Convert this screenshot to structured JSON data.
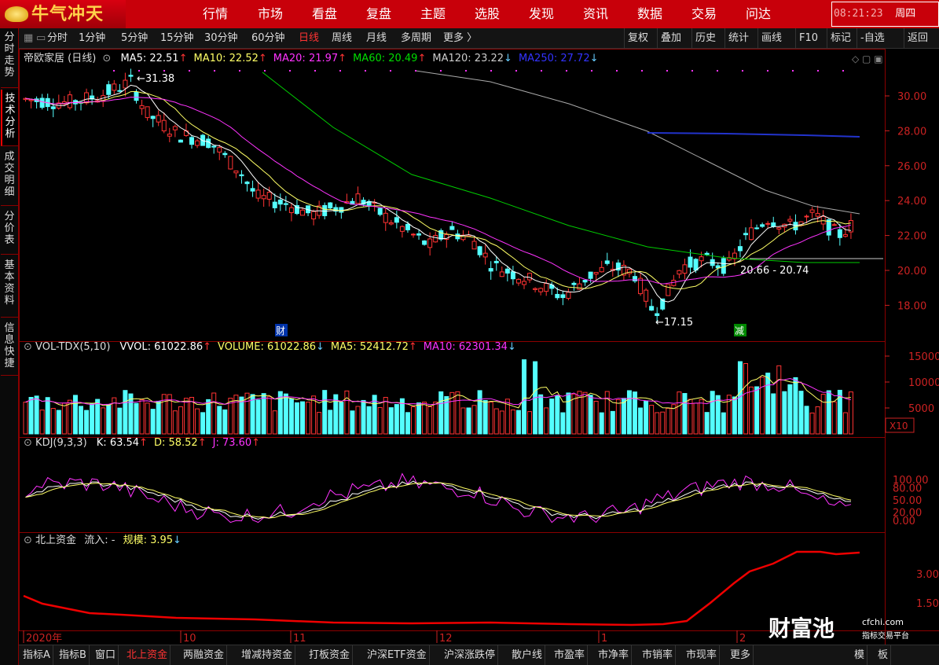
{
  "app": {
    "logo_text": "牛气冲天"
  },
  "topnav": {
    "items": [
      "行情",
      "市场",
      "看盘",
      "复盘",
      "主题",
      "选股",
      "发现",
      "资讯",
      "数据",
      "交易",
      "问达"
    ],
    "clock": "08:21:23",
    "weekday": "周四"
  },
  "toolbar": {
    "left": [
      "分时",
      "1分钟",
      "5分钟",
      "15分钟",
      "30分钟",
      "60分钟",
      "日线",
      "周线",
      "月线",
      "多周期",
      "更多 〉"
    ],
    "active": "日线",
    "right": [
      "复权",
      "叠加",
      "历史",
      "统计",
      "画线",
      "F10",
      "标记",
      "-自选",
      "返回"
    ]
  },
  "sidetabs": [
    "分时走势",
    "技术分析",
    "成交明细",
    "分价表",
    "基本资料",
    "信息快捷"
  ],
  "sidetab_active": "技术分析",
  "price_panel": {
    "name": "帝欧家居 (日线)",
    "indicators": [
      {
        "label": "MA5: 22.51",
        "arrow": "↑",
        "color": "#ffffff"
      },
      {
        "label": "MA10: 22.52",
        "arrow": "↑",
        "color": "#ffff66"
      },
      {
        "label": "MA20: 21.97",
        "arrow": "↑",
        "color": "#ff33ff"
      },
      {
        "label": "MA60: 20.49",
        "arrow": "↑",
        "color": "#00dd00"
      },
      {
        "label": "MA120: 23.22",
        "arrow": "↓",
        "color": "#cccccc"
      },
      {
        "label": "MA250: 27.72",
        "arrow": "↓",
        "color": "#3333ff"
      }
    ],
    "yticks": [
      "30.00",
      "28.00",
      "26.00",
      "24.00",
      "22.00",
      "20.00",
      "18.00"
    ],
    "annotations": {
      "high": "31.38",
      "low": "17.15",
      "range": "20.66 - 20.74",
      "marker_cai": "财",
      "marker_jian": "减"
    }
  },
  "vol_panel": {
    "title": "VOL-TDX(5,10)",
    "items": [
      {
        "label": "VVOL: 61022.86",
        "arrow": "↑",
        "color": "#ffffff"
      },
      {
        "label": "VOLUME: 61022.86",
        "arrow": "↓",
        "color": "#ffff66"
      },
      {
        "label": "MA5: 52412.72",
        "arrow": "↑",
        "color": "#ffff66"
      },
      {
        "label": "MA10: 62301.34",
        "arrow": "↓",
        "color": "#ff33ff"
      }
    ],
    "yticks": [
      "15000",
      "10000",
      "5000"
    ],
    "unit": "X10"
  },
  "kdj_panel": {
    "title": "KDJ(9,3,3)",
    "items": [
      {
        "label": "K: 63.54",
        "arrow": "↑",
        "color": "#ffffff"
      },
      {
        "label": "D: 58.52",
        "arrow": "↑",
        "color": "#ffff66"
      },
      {
        "label": "J: 73.60",
        "arrow": "↑",
        "color": "#ff33ff"
      }
    ],
    "yticks": [
      "100.00",
      "80.00",
      "50.00",
      "20.00",
      "0.00"
    ]
  },
  "north_panel": {
    "title": "北上资金",
    "flow": "流入: -",
    "scale": "规模: 3.95",
    "arrow": "↓",
    "yticks": [
      "3.00",
      "1.50"
    ]
  },
  "xaxis": [
    "2020年",
    "10",
    "11",
    "12",
    "1",
    "2"
  ],
  "bottombar": [
    "指标A",
    "指标B",
    "窗口",
    "北上资金",
    "两融资金",
    "增减持资金",
    "打板资金",
    "沪深ETF资金",
    "沪深涨跌停",
    "散户线",
    "市盈率",
    "市净率",
    "市销率",
    "市现率",
    "更多"
  ],
  "bottombar_active": "北上资金",
  "bottom_right": [
    "模",
    "板"
  ],
  "watermark": {
    "brand": "财富池",
    "url": "cfchi.com",
    "tagline": "指标交易平台"
  }
}
